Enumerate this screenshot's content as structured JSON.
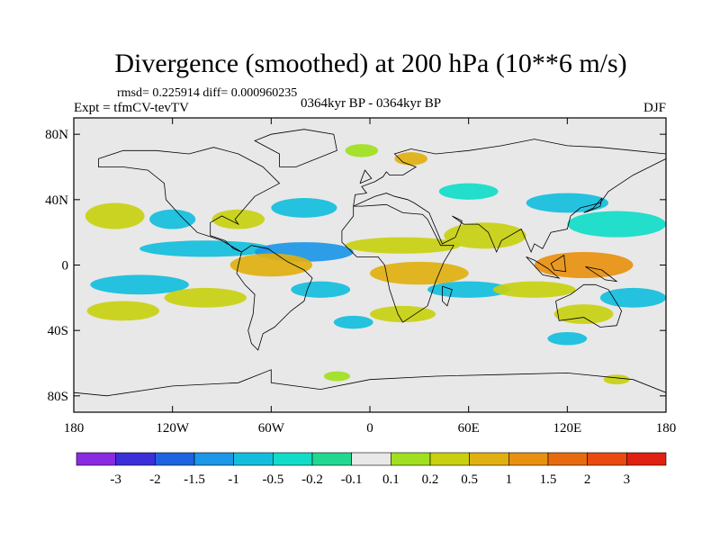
{
  "chart_data": {
    "type": "heatmap",
    "title": "Divergence (smoothed) at 200 hPa (10**6 m/s)",
    "stats_label": "rmsd= 0.225914 diff= 0.000960235",
    "experiment_label": "Expt = tfmCV-tevTV",
    "period_label": "0364kyr BP - 0364kyr BP",
    "season_label": "DJF",
    "x_ticks": [
      {
        "value": -180,
        "label": "180"
      },
      {
        "value": -120,
        "label": "120W"
      },
      {
        "value": -60,
        "label": "60W"
      },
      {
        "value": 0,
        "label": "0"
      },
      {
        "value": 60,
        "label": "60E"
      },
      {
        "value": 120,
        "label": "120E"
      },
      {
        "value": 180,
        "label": "180"
      }
    ],
    "y_ticks": [
      {
        "value": 80,
        "label": "80N"
      },
      {
        "value": 40,
        "label": "40N"
      },
      {
        "value": 0,
        "label": "0"
      },
      {
        "value": -40,
        "label": "40S"
      },
      {
        "value": -80,
        "label": "80S"
      }
    ],
    "x_range": [
      -180,
      180
    ],
    "y_range": [
      -90,
      90
    ],
    "colorbar": {
      "colors": [
        "#8a2be2",
        "#3a2fd8",
        "#1e64e0",
        "#1c96e6",
        "#12bedc",
        "#10dcc8",
        "#20d890",
        "#e8e8e8",
        "#a0e020",
        "#c8d010",
        "#e0b010",
        "#e89010",
        "#e86a10",
        "#e84a10",
        "#e02010"
      ],
      "labels": [
        "-3",
        "-2",
        "-1.5",
        "-1",
        "-0.5",
        "-0.2",
        "-0.1",
        "0.1",
        "0.2",
        "0.5",
        "1",
        "1.5",
        "2",
        "3"
      ]
    },
    "field_blobs": [
      {
        "lon": -155,
        "lat": 30,
        "rx": 18,
        "ry": 8,
        "level": 9
      },
      {
        "lon": -120,
        "lat": 28,
        "rx": 14,
        "ry": 6,
        "level": 4
      },
      {
        "lon": -80,
        "lat": 28,
        "rx": 16,
        "ry": 6,
        "level": 9
      },
      {
        "lon": -40,
        "lat": 35,
        "rx": 20,
        "ry": 6,
        "level": 4
      },
      {
        "lon": -100,
        "lat": 10,
        "rx": 40,
        "ry": 5,
        "level": 4
      },
      {
        "lon": -40,
        "lat": 8,
        "rx": 30,
        "ry": 6,
        "level": 3
      },
      {
        "lon": 20,
        "lat": 12,
        "rx": 35,
        "ry": 5,
        "level": 9
      },
      {
        "lon": 70,
        "lat": 18,
        "rx": 25,
        "ry": 8,
        "level": 9
      },
      {
        "lon": 150,
        "lat": 25,
        "rx": 30,
        "ry": 8,
        "level": 5
      },
      {
        "lon": 120,
        "lat": 38,
        "rx": 25,
        "ry": 6,
        "level": 4
      },
      {
        "lon": 60,
        "lat": 45,
        "rx": 18,
        "ry": 5,
        "level": 5
      },
      {
        "lon": -5,
        "lat": 70,
        "rx": 10,
        "ry": 4,
        "level": 8
      },
      {
        "lon": 25,
        "lat": 65,
        "rx": 10,
        "ry": 4,
        "level": 10
      },
      {
        "lon": -60,
        "lat": 0,
        "rx": 25,
        "ry": 7,
        "level": 10
      },
      {
        "lon": -140,
        "lat": -12,
        "rx": 30,
        "ry": 6,
        "level": 4
      },
      {
        "lon": -150,
        "lat": -28,
        "rx": 22,
        "ry": 6,
        "level": 9
      },
      {
        "lon": -100,
        "lat": -20,
        "rx": 25,
        "ry": 6,
        "level": 9
      },
      {
        "lon": -30,
        "lat": -15,
        "rx": 18,
        "ry": 5,
        "level": 4
      },
      {
        "lon": 30,
        "lat": -5,
        "rx": 30,
        "ry": 7,
        "level": 10
      },
      {
        "lon": 60,
        "lat": -15,
        "rx": 25,
        "ry": 5,
        "level": 4
      },
      {
        "lon": 130,
        "lat": 0,
        "rx": 30,
        "ry": 8,
        "level": 11
      },
      {
        "lon": 100,
        "lat": -15,
        "rx": 25,
        "ry": 5,
        "level": 9
      },
      {
        "lon": 160,
        "lat": -20,
        "rx": 20,
        "ry": 6,
        "level": 4
      },
      {
        "lon": 130,
        "lat": -30,
        "rx": 18,
        "ry": 6,
        "level": 9
      },
      {
        "lon": 20,
        "lat": -30,
        "rx": 20,
        "ry": 5,
        "level": 9
      },
      {
        "lon": -10,
        "lat": -35,
        "rx": 12,
        "ry": 4,
        "level": 4
      },
      {
        "lon": 120,
        "lat": -45,
        "rx": 12,
        "ry": 4,
        "level": 4
      },
      {
        "lon": 150,
        "lat": -70,
        "rx": 8,
        "ry": 3,
        "level": 9
      },
      {
        "lon": -20,
        "lat": -68,
        "rx": 8,
        "ry": 3,
        "level": 8
      }
    ]
  }
}
